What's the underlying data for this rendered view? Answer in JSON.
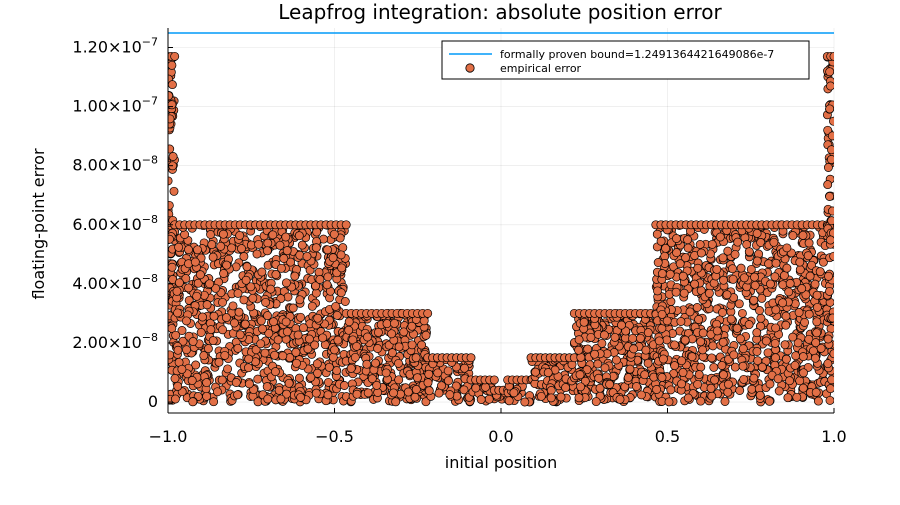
{
  "chart_data": {
    "type": "scatter",
    "title": "Leapfrog integration: absolute position error",
    "xlabel": "initial position",
    "ylabel": "floating-point error",
    "xlim": [
      -1.0,
      1.0
    ],
    "ylim": [
      -3.7e-09,
      1.266e-07
    ],
    "grid": true,
    "legend_position": "top-right",
    "x_ticks": [
      {
        "value": -1.0,
        "label": "−1.0"
      },
      {
        "value": -0.5,
        "label": "−0.5"
      },
      {
        "value": 0.0,
        "label": "0.0"
      },
      {
        "value": 0.5,
        "label": "0.5"
      },
      {
        "value": 1.0,
        "label": "1.0"
      }
    ],
    "y_ticks": [
      {
        "value": 0,
        "mantissa": "0",
        "exponent": ""
      },
      {
        "value": 2e-08,
        "mantissa": "2.00×10",
        "exponent": "−8"
      },
      {
        "value": 4e-08,
        "mantissa": "4.00×10",
        "exponent": "−8"
      },
      {
        "value": 6e-08,
        "mantissa": "6.00×10",
        "exponent": "−8"
      },
      {
        "value": 8e-08,
        "mantissa": "8.00×10",
        "exponent": "−8"
      },
      {
        "value": 1e-07,
        "mantissa": "1.00×10",
        "exponent": "−7"
      },
      {
        "value": 1.2e-07,
        "mantissa": "1.20×10",
        "exponent": "−7"
      }
    ],
    "series": [
      {
        "name": "formally proven bound=1.2491364421649086e-7",
        "kind": "hline",
        "y": 1.2491364421649086e-07,
        "color": "#009af9"
      },
      {
        "name": "empirical error",
        "kind": "scatter",
        "color": "#e26f46",
        "edge_color": "#000000",
        "envelope": [
          {
            "x_from": -1.0,
            "x_to": -0.98,
            "y_max": 1.17e-07
          },
          {
            "x_from": -0.98,
            "x_to": -0.465,
            "y_max": 6e-08
          },
          {
            "x_from": -0.465,
            "x_to": -0.22,
            "y_max": 3e-08
          },
          {
            "x_from": -0.22,
            "x_to": -0.09,
            "y_max": 1.5e-08
          },
          {
            "x_from": -0.09,
            "x_to": -0.02,
            "y_max": 7.5e-09
          },
          {
            "x_from": -0.02,
            "x_to": 0.02,
            "y_max": 4e-09
          },
          {
            "x_from": 0.02,
            "x_to": 0.09,
            "y_max": 7.5e-09
          },
          {
            "x_from": 0.09,
            "x_to": 0.22,
            "y_max": 1.5e-08
          },
          {
            "x_from": 0.22,
            "x_to": 0.465,
            "y_max": 3e-08
          },
          {
            "x_from": 0.465,
            "x_to": 0.98,
            "y_max": 6e-08
          },
          {
            "x_from": 0.98,
            "x_to": 1.0,
            "y_max": 1.17e-07
          }
        ]
      }
    ]
  }
}
